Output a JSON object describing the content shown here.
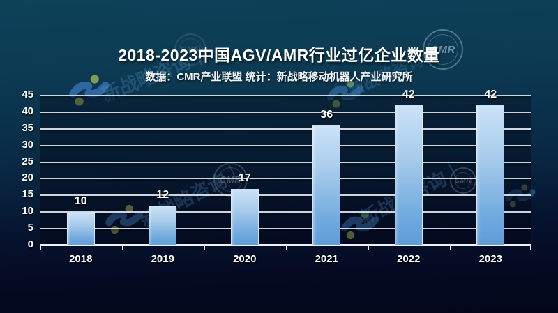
{
  "slide": {
    "title": "2018-2023中国AGV/AMR行业过亿企业数量",
    "subtitle": "数据：CMR产业联盟  统计：新战略移动机器人产业研究所"
  },
  "watermarks": {
    "brand_text": "新战略咨询｜",
    "stamp_text": "CMR"
  },
  "chart_data": {
    "type": "bar",
    "title": "2018-2023中国AGV/AMR行业过亿企业数量",
    "source_note": "数据：CMR产业联盟  统计：新战略移动机器人产业研究所",
    "categories": [
      "2018",
      "2019",
      "2020",
      "2021",
      "2022",
      "2023"
    ],
    "values": [
      10,
      12,
      17,
      36,
      42,
      42
    ],
    "xlabel": "",
    "ylabel": "",
    "ylim": [
      0,
      45
    ],
    "yticks": [
      0,
      5,
      10,
      15,
      20,
      25,
      30,
      35,
      40,
      45
    ],
    "grid": "horizontal",
    "legend": "none",
    "bar_color_top": "#c9e2f7",
    "bar_color_bottom": "#5f9cd7"
  },
  "colors": {
    "background_top": "#0d4259",
    "background_bottom": "#04071a",
    "gridline": "#dfe5ec",
    "axis_line": "#eef2f6",
    "text": "#ffffff",
    "watermark_blue": "#4f94cf",
    "watermark_green": "#a8bf55"
  }
}
